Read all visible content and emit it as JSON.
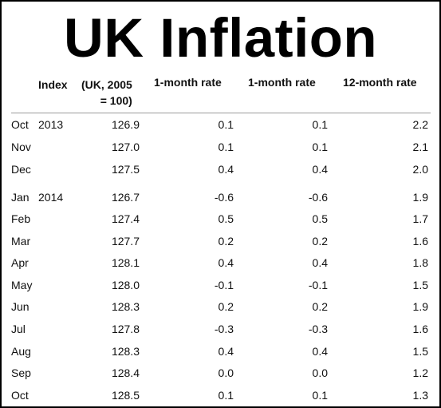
{
  "title": "UK Inflation",
  "headers": {
    "index": "Index",
    "index_note_line1": "(UK, 2005",
    "index_note_line2": "= 100)",
    "rate_a": "1-month rate",
    "rate_b": "1-month rate",
    "rate_c": "12-month rate"
  },
  "chart_data": {
    "type": "table",
    "title": "UK Inflation",
    "columns": [
      "",
      "Index (UK, 2005 = 100)",
      "1-month rate",
      "1-month rate",
      "12-month rate"
    ],
    "rows": [
      {
        "month": "Oct",
        "year": "2013",
        "index": "126.9",
        "rate_a": "0.1",
        "rate_b": "0.1",
        "rate_c": "2.2"
      },
      {
        "month": "Nov",
        "year": "",
        "index": "127.0",
        "rate_a": "0.1",
        "rate_b": "0.1",
        "rate_c": "2.1"
      },
      {
        "month": "Dec",
        "year": "",
        "index": "127.5",
        "rate_a": "0.4",
        "rate_b": "0.4",
        "rate_c": "2.0"
      },
      {
        "month": "Jan",
        "year": "2014",
        "index": "126.7",
        "rate_a": "-0.6",
        "rate_b": "-0.6",
        "rate_c": "1.9"
      },
      {
        "month": "Feb",
        "year": "",
        "index": "127.4",
        "rate_a": "0.5",
        "rate_b": "0.5",
        "rate_c": "1.7"
      },
      {
        "month": "Mar",
        "year": "",
        "index": "127.7",
        "rate_a": "0.2",
        "rate_b": "0.2",
        "rate_c": "1.6"
      },
      {
        "month": "Apr",
        "year": "",
        "index": "128.1",
        "rate_a": "0.4",
        "rate_b": "0.4",
        "rate_c": "1.8"
      },
      {
        "month": "May",
        "year": "",
        "index": "128.0",
        "rate_a": "-0.1",
        "rate_b": "-0.1",
        "rate_c": "1.5"
      },
      {
        "month": "Jun",
        "year": "",
        "index": "128.3",
        "rate_a": "0.2",
        "rate_b": "0.2",
        "rate_c": "1.9"
      },
      {
        "month": "Jul",
        "year": "",
        "index": "127.8",
        "rate_a": "-0.3",
        "rate_b": "-0.3",
        "rate_c": "1.6"
      },
      {
        "month": "Aug",
        "year": "",
        "index": "128.3",
        "rate_a": "0.4",
        "rate_b": "0.4",
        "rate_c": "1.5"
      },
      {
        "month": "Sep",
        "year": "",
        "index": "128.4",
        "rate_a": "0.0",
        "rate_b": "0.0",
        "rate_c": "1.2"
      },
      {
        "month": "Oct",
        "year": "",
        "index": "128.5",
        "rate_a": "0.1",
        "rate_b": "0.1",
        "rate_c": "1.3"
      }
    ]
  }
}
